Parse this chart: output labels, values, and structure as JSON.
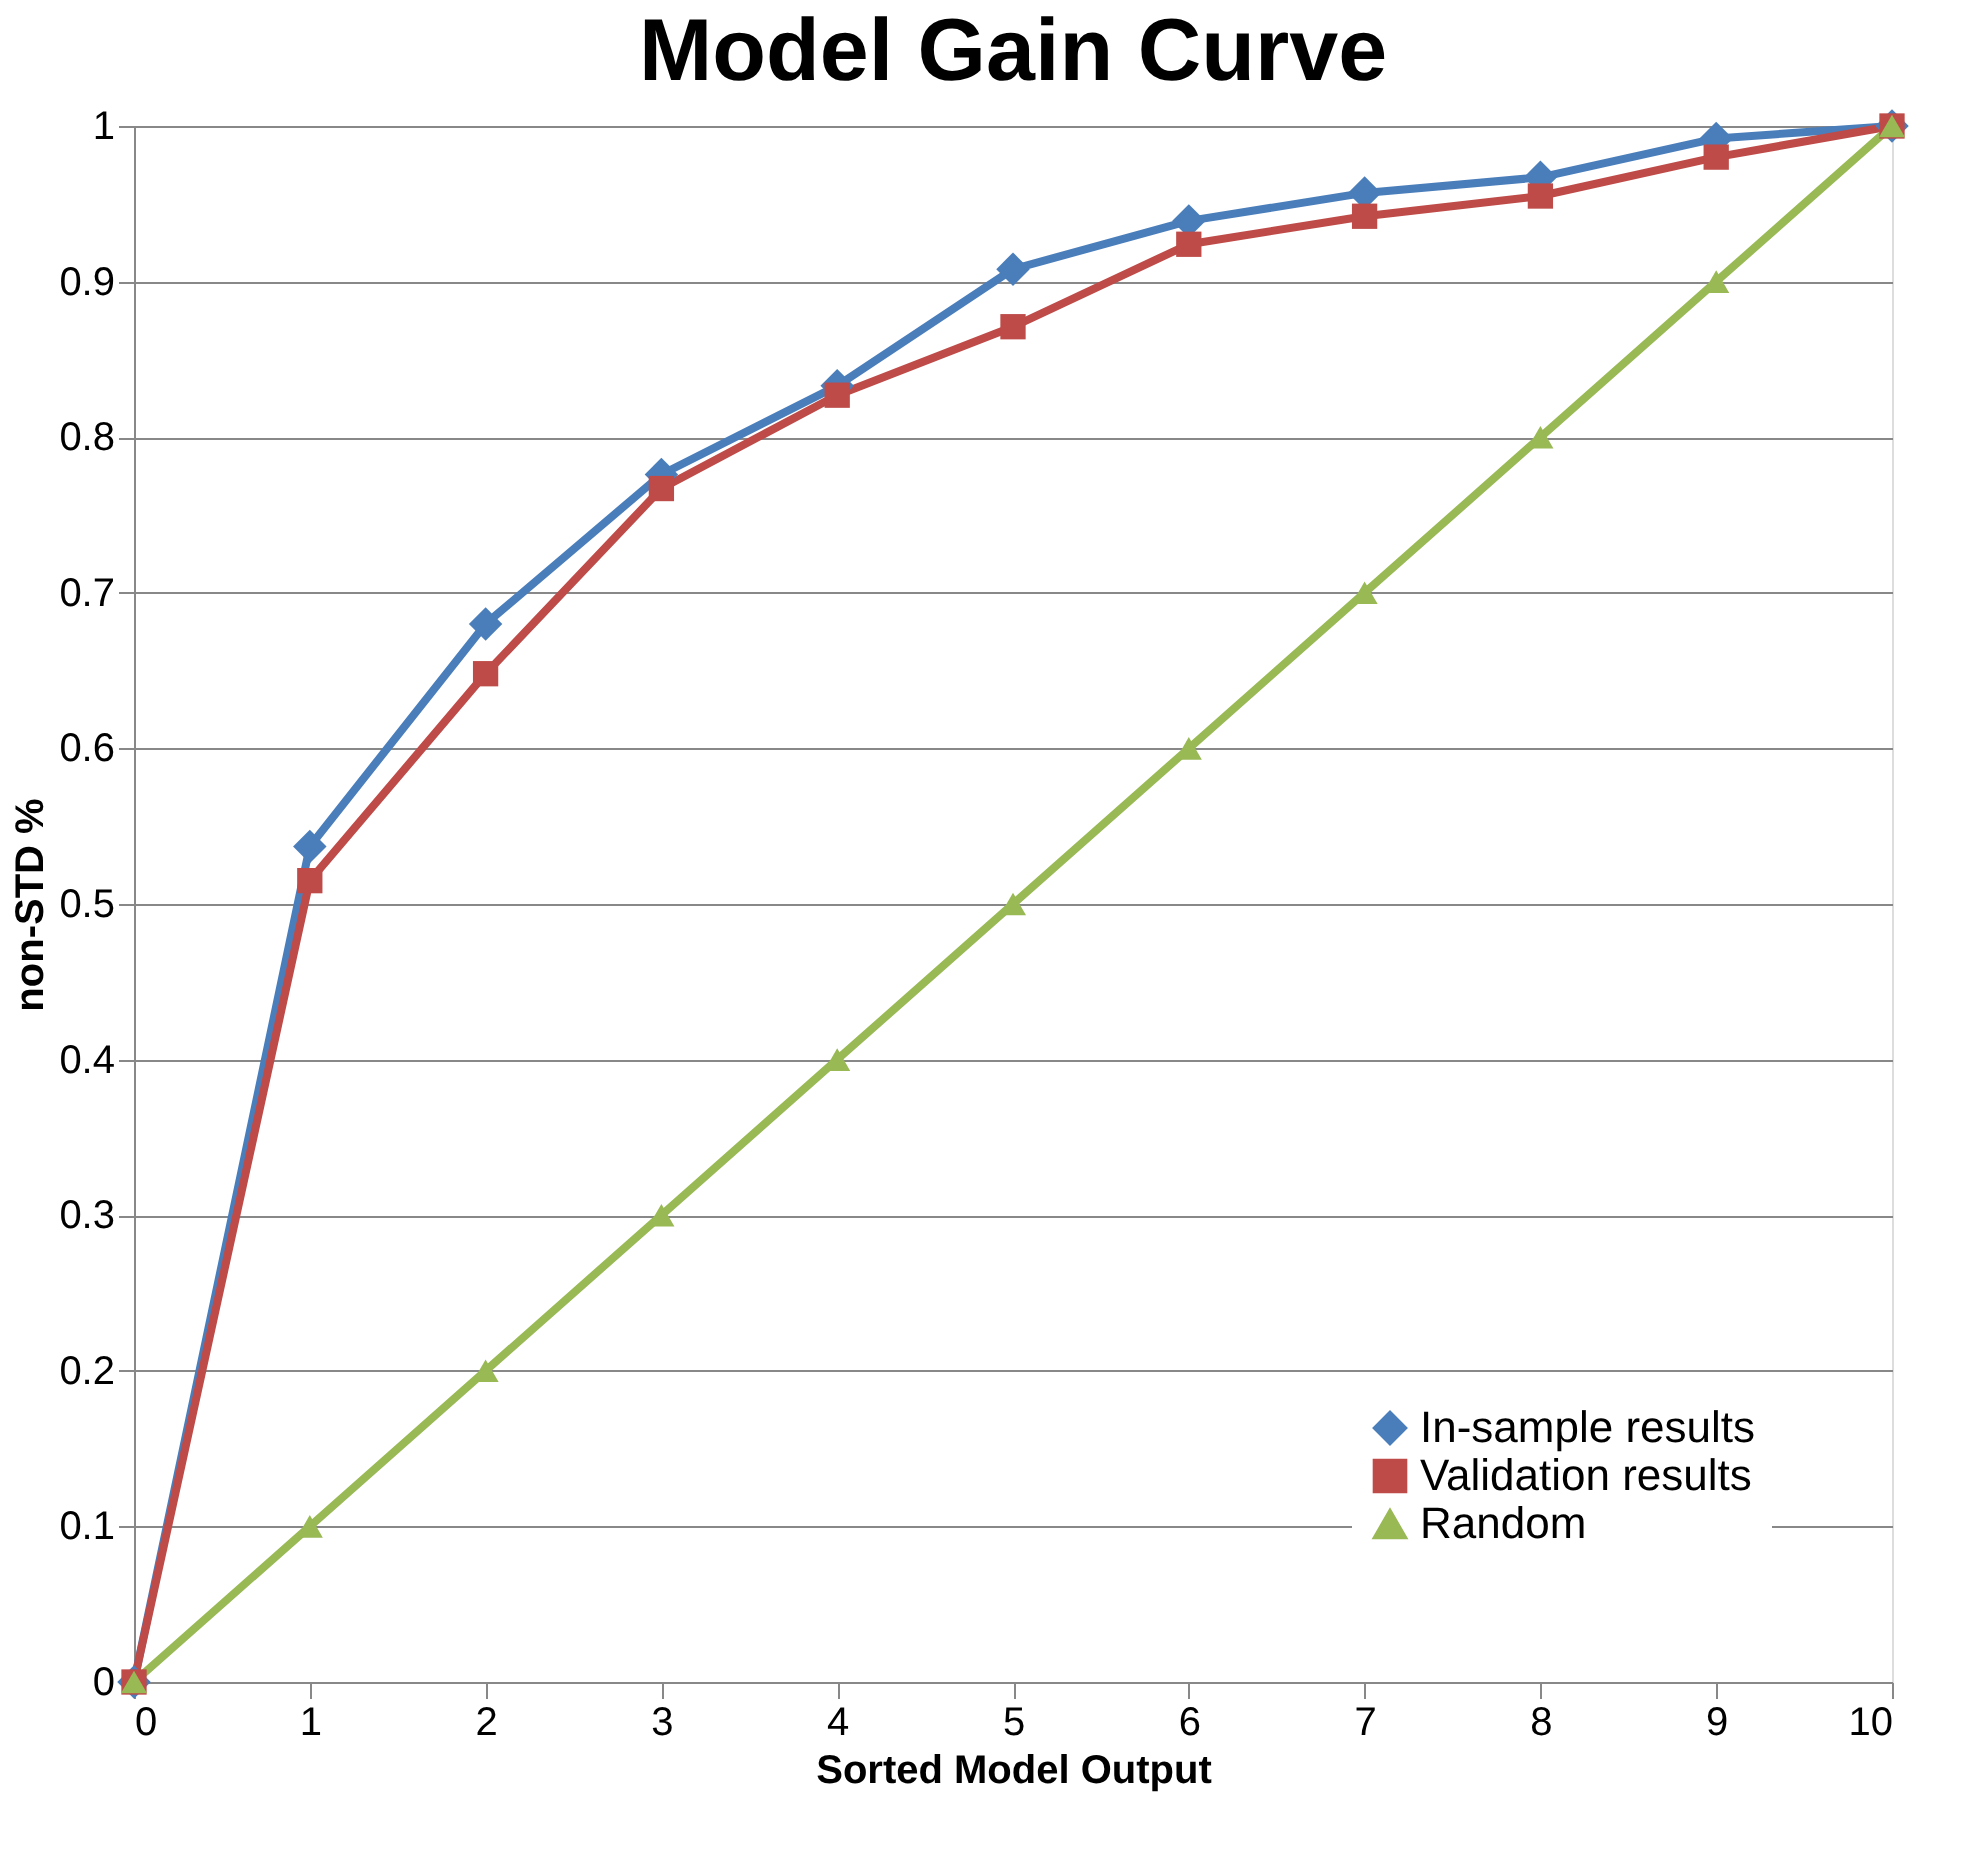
{
  "chart_data": {
    "type": "line",
    "title": "Model Gain Curve",
    "xlabel": "Sorted Model Output",
    "ylabel": "non-STD %",
    "x": [
      0,
      1,
      2,
      3,
      4,
      5,
      6,
      7,
      8,
      9,
      10
    ],
    "series": [
      {
        "name": "In-sample results",
        "color": "#4a7ebb",
        "marker": "diamond",
        "values": [
          0,
          0.537,
          0.68,
          0.776,
          0.833,
          0.908,
          0.939,
          0.957,
          0.967,
          0.992,
          1
        ]
      },
      {
        "name": "Validation results",
        "color": "#be4b48",
        "marker": "square",
        "values": [
          0,
          0.515,
          0.648,
          0.767,
          0.827,
          0.871,
          0.924,
          0.942,
          0.955,
          0.98,
          1
        ]
      },
      {
        "name": "Random",
        "color": "#98b954",
        "marker": "triangle",
        "values": [
          0,
          0.1,
          0.2,
          0.3,
          0.4,
          0.5,
          0.6,
          0.7,
          0.8,
          0.9,
          1
        ]
      }
    ],
    "xlim": [
      0,
      10
    ],
    "xticks": [
      0,
      1,
      2,
      3,
      4,
      5,
      6,
      7,
      8,
      9,
      10
    ],
    "ylim": [
      0,
      1
    ],
    "yticks": [
      0,
      0.1,
      0.2,
      0.3,
      0.4,
      0.5,
      0.6,
      0.7,
      0.8,
      0.9,
      1
    ],
    "grid": "y",
    "legend": "bottom right",
    "line_style": "solid"
  }
}
